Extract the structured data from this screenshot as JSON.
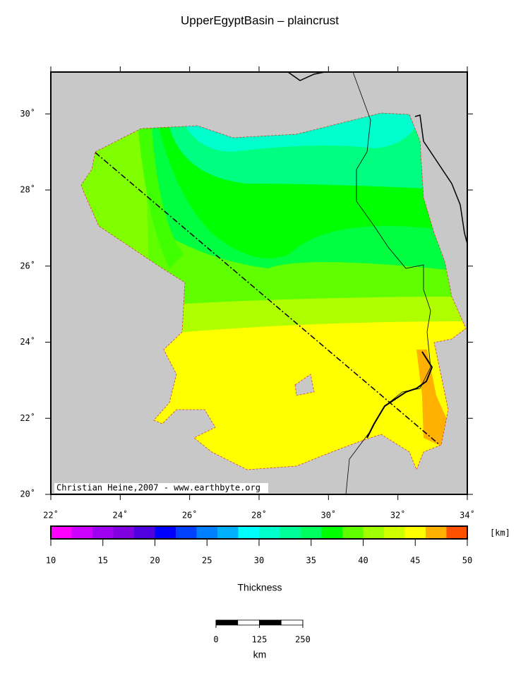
{
  "map": {
    "title": "UpperEgyptBasin – plaincrust",
    "lonlim": [
      22,
      34
    ],
    "latlim": [
      20,
      31.1
    ],
    "lon_ticks": [
      {
        "value": 22,
        "label": "22˚"
      },
      {
        "value": 24,
        "label": "24˚"
      },
      {
        "value": 26,
        "label": "26˚"
      },
      {
        "value": 28,
        "label": "28˚"
      },
      {
        "value": 30,
        "label": "30˚"
      },
      {
        "value": 32,
        "label": "32˚"
      },
      {
        "value": 34,
        "label": "34˚"
      }
    ],
    "lat_ticks": [
      {
        "value": 20,
        "label": "20˚"
      },
      {
        "value": 22,
        "label": "22˚"
      },
      {
        "value": 24,
        "label": "24˚"
      },
      {
        "value": 26,
        "label": "26˚"
      },
      {
        "value": 28,
        "label": "28˚"
      },
      {
        "value": 30,
        "label": "30˚"
      }
    ],
    "credit": "Christian Heine,2007 - www.earthbyte.org"
  },
  "colorbar": {
    "label": "Thickness",
    "unit": "[km]",
    "lim": [
      10,
      50
    ],
    "ticks": [
      10,
      15,
      20,
      25,
      30,
      35,
      40,
      45,
      50
    ],
    "colors": [
      "#ff00ff",
      "#cc00ff",
      "#a000f0",
      "#8000e0",
      "#5000e0",
      "#0000ff",
      "#0040ff",
      "#0080ff",
      "#00b0ff",
      "#00ffff",
      "#00ffcc",
      "#00ff99",
      "#00ff60",
      "#00ff00",
      "#60ff00",
      "#a0ff00",
      "#d0ff00",
      "#ffff00",
      "#ffb000",
      "#ff5000"
    ]
  },
  "scalebar": {
    "ticks": [
      0,
      125,
      250
    ],
    "unit": "km"
  }
}
